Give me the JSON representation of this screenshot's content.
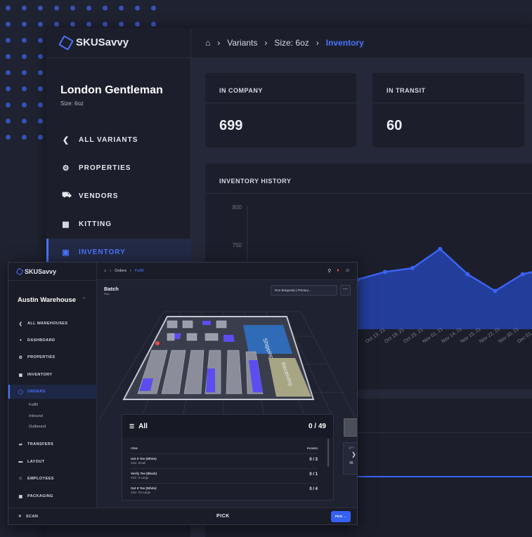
{
  "back": {
    "brand": "SKUSavvy",
    "breadcrumb": [
      "Variants",
      "Size: 6oz"
    ],
    "breadcrumb_current": "Inventory",
    "product_title": "London Gentleman",
    "product_subtitle": "Size: 6oz",
    "nav": [
      {
        "label": "ALL VARIANTS",
        "icon": "chevron-left-icon"
      },
      {
        "label": "PROPERTIES",
        "icon": "gear-icon"
      },
      {
        "label": "VENDORS",
        "icon": "truck-icon"
      },
      {
        "label": "KITTING",
        "icon": "grid-icon"
      },
      {
        "label": "INVENTORY",
        "icon": "box-icon",
        "active": true
      }
    ],
    "cards": [
      {
        "label": "IN COMPANY",
        "value": "699"
      },
      {
        "label": "IN TRANSIT",
        "value": "60"
      }
    ],
    "history_label": "INVENTORY HISTORY"
  },
  "chart_data": {
    "type": "area",
    "title": "INVENTORY HISTORY",
    "y_ticks": [
      800,
      750
    ],
    "x_ticks": [
      "Oct 13, 21",
      "Oct 19, 21",
      "Oct 25, 21",
      "Nov 01, 21",
      "Nov 14, 21",
      "Nov 15, 21",
      "Nov 22, 21",
      "Nov 30, 21",
      "Dec 01, 21",
      "Dec 02, 21"
    ],
    "values": [
      705,
      700,
      690,
      705,
      705,
      715,
      720,
      745,
      712,
      690,
      712,
      720,
      715
    ],
    "color": "#3a63f5"
  },
  "front": {
    "brand": "SKUSavvy",
    "breadcrumb": [
      "Orders"
    ],
    "breadcrumb_current": "Fulfill",
    "warehouse": "Austin Warehouse",
    "nav": [
      {
        "label": "ALL WAREHOUSES",
        "icon": "chevron-left-icon"
      },
      {
        "label": "DASHBOARD",
        "icon": "dashboard-icon"
      },
      {
        "label": "PROPERTIES",
        "icon": "gear-icon"
      },
      {
        "label": "INVENTORY",
        "icon": "box-icon"
      },
      {
        "label": "ORDERS",
        "icon": "orders-icon",
        "active": true
      }
    ],
    "order_subitems": [
      "Fulfill",
      "Inbound",
      "Outbound"
    ],
    "nav_lower": [
      {
        "label": "TRANSFERS",
        "icon": "transfer-icon"
      },
      {
        "label": "LAYOUT",
        "icon": "layout-icon"
      },
      {
        "label": "EMPLOYEES",
        "icon": "person-icon"
      },
      {
        "label": "PACKAGING",
        "icon": "package-icon"
      }
    ],
    "scan_label": "SCAN",
    "batch_title": "Batch",
    "batch_sub": "Pick",
    "user_select": "Ron Burgundy | Primary...",
    "zones": [
      "Shipping",
      "Receiving"
    ],
    "list_title": "All",
    "list_count": "0 / 49",
    "columns": [
      "ITEM",
      "PICKED"
    ],
    "items": [
      {
        "name": "Get It Tee (White)",
        "size": "Size: Small",
        "picked": "0 / 3"
      },
      {
        "name": "Verify Tee (Black)",
        "size": "Size: X-Large",
        "picked": "0 / 1"
      },
      {
        "name": "Get It Tee (White)",
        "size": "Size: XX-Large",
        "picked": "0 / 4"
      }
    ],
    "side_qty_label": "QTY",
    "side_qty_value": "96",
    "pick_label": "PICK",
    "pick_button": "PICK →"
  }
}
